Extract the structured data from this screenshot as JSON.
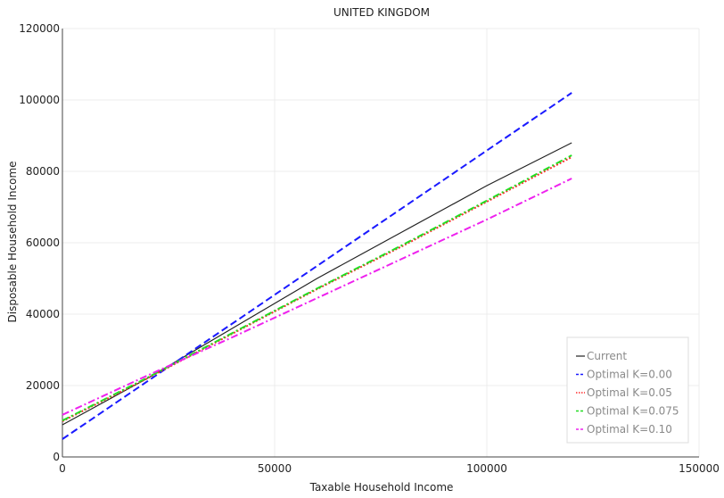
{
  "chart_data": {
    "type": "line",
    "title": "UNITED KINGDOM",
    "xlabel": "Taxable Household Income",
    "ylabel": "Disposable Household Income",
    "xlim": [
      0,
      150000
    ],
    "ylim": [
      0,
      120000
    ],
    "xticks": [
      0,
      50000,
      100000,
      150000
    ],
    "yticks": [
      0,
      20000,
      40000,
      60000,
      80000,
      100000,
      120000
    ],
    "xtick_labels": [
      "0",
      "50000",
      "100000",
      "150000"
    ],
    "ytick_labels": [
      "0",
      "20000",
      "40000",
      "60000",
      "80000",
      "100000",
      "120000"
    ],
    "grid": true,
    "legend_position": "bottom-right",
    "series": [
      {
        "name": "Current",
        "color": "#222222",
        "dash": "solid",
        "x": [
          0,
          10000,
          20000,
          30000,
          40000,
          50000,
          60000,
          70000,
          80000,
          90000,
          100000,
          110000,
          120000
        ],
        "y": [
          9000,
          15500,
          22000,
          29000,
          36000,
          43000,
          50000,
          56500,
          63000,
          69500,
          76000,
          82000,
          88000
        ]
      },
      {
        "name": "Optimal K=0.00",
        "color": "#1a1aff",
        "dash": "dashed",
        "x": [
          0,
          120000
        ],
        "y": [
          5000,
          102000
        ]
      },
      {
        "name": "Optimal K=0.05",
        "color": "#ff2a2a",
        "dash": "dotted",
        "x": [
          0,
          20000,
          40000,
          60000,
          80000,
          100000,
          120000
        ],
        "y": [
          10000,
          22000,
          34500,
          47000,
          59000,
          71500,
          84000
        ]
      },
      {
        "name": "Optimal K=0.075",
        "color": "#22dd22",
        "dash": "dashdot",
        "x": [
          0,
          20000,
          40000,
          60000,
          80000,
          100000,
          120000
        ],
        "y": [
          10200,
          22200,
          34700,
          47200,
          59300,
          71800,
          84500
        ]
      },
      {
        "name": "Optimal K=0.10",
        "color": "#ee22ee",
        "dash": "dashdot",
        "x": [
          0,
          20000,
          40000,
          60000,
          80000,
          100000,
          120000
        ],
        "y": [
          11800,
          22800,
          33500,
          44500,
          55500,
          66500,
          78000
        ]
      }
    ]
  }
}
